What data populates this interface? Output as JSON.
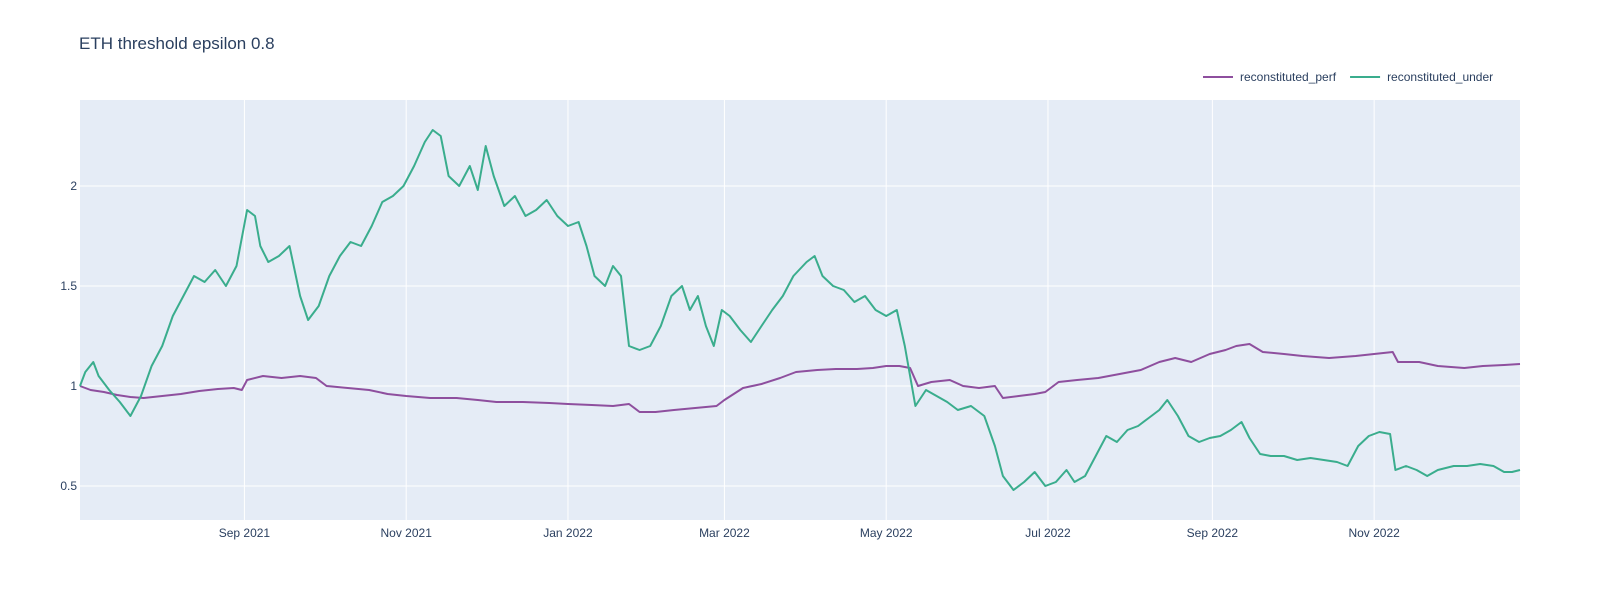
{
  "chart_data": {
    "type": "line",
    "title": "ETH threshold epsilon 0.8",
    "xlabel": "",
    "ylabel": "",
    "x_range": [
      "2021-07-01",
      "2022-12-26"
    ],
    "ylim": [
      0.33,
      2.43
    ],
    "x_ticks": [
      {
        "date": "2021-09-01",
        "label": "Sep 2021"
      },
      {
        "date": "2021-11-01",
        "label": "Nov 2021"
      },
      {
        "date": "2022-01-01",
        "label": "Jan 2022"
      },
      {
        "date": "2022-03-01",
        "label": "Mar 2022"
      },
      {
        "date": "2022-05-01",
        "label": "May 2022"
      },
      {
        "date": "2022-07-01",
        "label": "Jul 2022"
      },
      {
        "date": "2022-09-01",
        "label": "Sep 2022"
      },
      {
        "date": "2022-11-01",
        "label": "Nov 2022"
      }
    ],
    "y_ticks": [
      0.5,
      1,
      1.5,
      2
    ],
    "grid": true,
    "legend_position": "top-right",
    "series": [
      {
        "name": "reconstituted_perf",
        "color": "#8e4f9e",
        "points": [
          [
            "2021-07-01",
            1.0
          ],
          [
            "2021-07-05",
            0.98
          ],
          [
            "2021-07-10",
            0.97
          ],
          [
            "2021-07-15",
            0.955
          ],
          [
            "2021-07-20",
            0.945
          ],
          [
            "2021-07-25",
            0.94
          ],
          [
            "2021-08-01",
            0.95
          ],
          [
            "2021-08-08",
            0.96
          ],
          [
            "2021-08-15",
            0.975
          ],
          [
            "2021-08-22",
            0.985
          ],
          [
            "2021-08-28",
            0.99
          ],
          [
            "2021-08-31",
            0.98
          ],
          [
            "2021-09-02",
            1.03
          ],
          [
            "2021-09-08",
            1.05
          ],
          [
            "2021-09-15",
            1.04
          ],
          [
            "2021-09-22",
            1.05
          ],
          [
            "2021-09-28",
            1.04
          ],
          [
            "2021-10-02",
            1.0
          ],
          [
            "2021-10-10",
            0.99
          ],
          [
            "2021-10-18",
            0.98
          ],
          [
            "2021-10-25",
            0.96
          ],
          [
            "2021-11-01",
            0.95
          ],
          [
            "2021-11-10",
            0.94
          ],
          [
            "2021-11-20",
            0.94
          ],
          [
            "2021-11-28",
            0.93
          ],
          [
            "2021-12-05",
            0.92
          ],
          [
            "2021-12-15",
            0.92
          ],
          [
            "2021-12-25",
            0.915
          ],
          [
            "2022-01-01",
            0.91
          ],
          [
            "2022-01-10",
            0.905
          ],
          [
            "2022-01-18",
            0.9
          ],
          [
            "2022-01-24",
            0.91
          ],
          [
            "2022-01-28",
            0.87
          ],
          [
            "2022-02-03",
            0.87
          ],
          [
            "2022-02-10",
            0.88
          ],
          [
            "2022-02-18",
            0.89
          ],
          [
            "2022-02-26",
            0.9
          ],
          [
            "2022-03-01",
            0.93
          ],
          [
            "2022-03-08",
            0.99
          ],
          [
            "2022-03-15",
            1.01
          ],
          [
            "2022-03-22",
            1.04
          ],
          [
            "2022-03-28",
            1.07
          ],
          [
            "2022-04-05",
            1.08
          ],
          [
            "2022-04-12",
            1.085
          ],
          [
            "2022-04-20",
            1.085
          ],
          [
            "2022-04-26",
            1.09
          ],
          [
            "2022-05-01",
            1.1
          ],
          [
            "2022-05-06",
            1.1
          ],
          [
            "2022-05-10",
            1.09
          ],
          [
            "2022-05-13",
            1.0
          ],
          [
            "2022-05-18",
            1.02
          ],
          [
            "2022-05-25",
            1.03
          ],
          [
            "2022-05-30",
            1.0
          ],
          [
            "2022-06-05",
            0.99
          ],
          [
            "2022-06-11",
            1.0
          ],
          [
            "2022-06-14",
            0.94
          ],
          [
            "2022-06-20",
            0.95
          ],
          [
            "2022-06-26",
            0.96
          ],
          [
            "2022-06-30",
            0.97
          ],
          [
            "2022-07-05",
            1.02
          ],
          [
            "2022-07-12",
            1.03
          ],
          [
            "2022-07-20",
            1.04
          ],
          [
            "2022-07-28",
            1.06
          ],
          [
            "2022-08-05",
            1.08
          ],
          [
            "2022-08-12",
            1.12
          ],
          [
            "2022-08-18",
            1.14
          ],
          [
            "2022-08-24",
            1.12
          ],
          [
            "2022-08-31",
            1.16
          ],
          [
            "2022-09-06",
            1.18
          ],
          [
            "2022-09-10",
            1.2
          ],
          [
            "2022-09-15",
            1.21
          ],
          [
            "2022-09-20",
            1.17
          ],
          [
            "2022-09-28",
            1.16
          ],
          [
            "2022-10-05",
            1.15
          ],
          [
            "2022-10-15",
            1.14
          ],
          [
            "2022-10-25",
            1.15
          ],
          [
            "2022-11-01",
            1.16
          ],
          [
            "2022-11-08",
            1.17
          ],
          [
            "2022-11-10",
            1.12
          ],
          [
            "2022-11-18",
            1.12
          ],
          [
            "2022-11-25",
            1.1
          ],
          [
            "2022-12-05",
            1.09
          ],
          [
            "2022-12-12",
            1.1
          ],
          [
            "2022-12-20",
            1.105
          ],
          [
            "2022-12-26",
            1.11
          ]
        ]
      },
      {
        "name": "reconstituted_under",
        "color": "#3aad8d",
        "points": [
          [
            "2021-07-01",
            1.0
          ],
          [
            "2021-07-03",
            1.07
          ],
          [
            "2021-07-06",
            1.12
          ],
          [
            "2021-07-08",
            1.05
          ],
          [
            "2021-07-12",
            0.98
          ],
          [
            "2021-07-16",
            0.92
          ],
          [
            "2021-07-20",
            0.85
          ],
          [
            "2021-07-24",
            0.95
          ],
          [
            "2021-07-28",
            1.1
          ],
          [
            "2021-08-01",
            1.2
          ],
          [
            "2021-08-05",
            1.35
          ],
          [
            "2021-08-09",
            1.45
          ],
          [
            "2021-08-13",
            1.55
          ],
          [
            "2021-08-17",
            1.52
          ],
          [
            "2021-08-21",
            1.58
          ],
          [
            "2021-08-25",
            1.5
          ],
          [
            "2021-08-29",
            1.6
          ],
          [
            "2021-09-02",
            1.88
          ],
          [
            "2021-09-05",
            1.85
          ],
          [
            "2021-09-07",
            1.7
          ],
          [
            "2021-09-10",
            1.62
          ],
          [
            "2021-09-14",
            1.65
          ],
          [
            "2021-09-18",
            1.7
          ],
          [
            "2021-09-22",
            1.45
          ],
          [
            "2021-09-25",
            1.33
          ],
          [
            "2021-09-29",
            1.4
          ],
          [
            "2021-10-03",
            1.55
          ],
          [
            "2021-10-07",
            1.65
          ],
          [
            "2021-10-11",
            1.72
          ],
          [
            "2021-10-15",
            1.7
          ],
          [
            "2021-10-19",
            1.8
          ],
          [
            "2021-10-23",
            1.92
          ],
          [
            "2021-10-27",
            1.95
          ],
          [
            "2021-10-31",
            2.0
          ],
          [
            "2021-11-04",
            2.1
          ],
          [
            "2021-11-08",
            2.22
          ],
          [
            "2021-11-11",
            2.28
          ],
          [
            "2021-11-14",
            2.25
          ],
          [
            "2021-11-17",
            2.05
          ],
          [
            "2021-11-21",
            2.0
          ],
          [
            "2021-11-25",
            2.1
          ],
          [
            "2021-11-28",
            1.98
          ],
          [
            "2021-12-01",
            2.2
          ],
          [
            "2021-12-04",
            2.05
          ],
          [
            "2021-12-08",
            1.9
          ],
          [
            "2021-12-12",
            1.95
          ],
          [
            "2021-12-16",
            1.85
          ],
          [
            "2021-12-20",
            1.88
          ],
          [
            "2021-12-24",
            1.93
          ],
          [
            "2021-12-28",
            1.85
          ],
          [
            "2022-01-01",
            1.8
          ],
          [
            "2022-01-05",
            1.82
          ],
          [
            "2022-01-08",
            1.7
          ],
          [
            "2022-01-11",
            1.55
          ],
          [
            "2022-01-15",
            1.5
          ],
          [
            "2022-01-18",
            1.6
          ],
          [
            "2022-01-21",
            1.55
          ],
          [
            "2022-01-24",
            1.2
          ],
          [
            "2022-01-28",
            1.18
          ],
          [
            "2022-02-01",
            1.2
          ],
          [
            "2022-02-05",
            1.3
          ],
          [
            "2022-02-09",
            1.45
          ],
          [
            "2022-02-13",
            1.5
          ],
          [
            "2022-02-16",
            1.38
          ],
          [
            "2022-02-19",
            1.45
          ],
          [
            "2022-02-22",
            1.3
          ],
          [
            "2022-02-25",
            1.2
          ],
          [
            "2022-02-28",
            1.38
          ],
          [
            "2022-03-03",
            1.35
          ],
          [
            "2022-03-07",
            1.28
          ],
          [
            "2022-03-11",
            1.22
          ],
          [
            "2022-03-15",
            1.3
          ],
          [
            "2022-03-19",
            1.38
          ],
          [
            "2022-03-23",
            1.45
          ],
          [
            "2022-03-27",
            1.55
          ],
          [
            "2022-04-01",
            1.62
          ],
          [
            "2022-04-04",
            1.65
          ],
          [
            "2022-04-07",
            1.55
          ],
          [
            "2022-04-11",
            1.5
          ],
          [
            "2022-04-15",
            1.48
          ],
          [
            "2022-04-19",
            1.42
          ],
          [
            "2022-04-23",
            1.45
          ],
          [
            "2022-04-27",
            1.38
          ],
          [
            "2022-05-01",
            1.35
          ],
          [
            "2022-05-05",
            1.38
          ],
          [
            "2022-05-08",
            1.2
          ],
          [
            "2022-05-10",
            1.05
          ],
          [
            "2022-05-12",
            0.9
          ],
          [
            "2022-05-16",
            0.98
          ],
          [
            "2022-05-20",
            0.95
          ],
          [
            "2022-05-24",
            0.92
          ],
          [
            "2022-05-28",
            0.88
          ],
          [
            "2022-06-02",
            0.9
          ],
          [
            "2022-06-07",
            0.85
          ],
          [
            "2022-06-11",
            0.7
          ],
          [
            "2022-06-14",
            0.55
          ],
          [
            "2022-06-18",
            0.48
          ],
          [
            "2022-06-22",
            0.52
          ],
          [
            "2022-06-26",
            0.57
          ],
          [
            "2022-06-30",
            0.5
          ],
          [
            "2022-07-04",
            0.52
          ],
          [
            "2022-07-08",
            0.58
          ],
          [
            "2022-07-11",
            0.52
          ],
          [
            "2022-07-15",
            0.55
          ],
          [
            "2022-07-19",
            0.65
          ],
          [
            "2022-07-23",
            0.75
          ],
          [
            "2022-07-27",
            0.72
          ],
          [
            "2022-07-31",
            0.78
          ],
          [
            "2022-08-04",
            0.8
          ],
          [
            "2022-08-08",
            0.84
          ],
          [
            "2022-08-12",
            0.88
          ],
          [
            "2022-08-15",
            0.93
          ],
          [
            "2022-08-19",
            0.85
          ],
          [
            "2022-08-23",
            0.75
          ],
          [
            "2022-08-27",
            0.72
          ],
          [
            "2022-08-31",
            0.74
          ],
          [
            "2022-09-04",
            0.75
          ],
          [
            "2022-09-08",
            0.78
          ],
          [
            "2022-09-12",
            0.82
          ],
          [
            "2022-09-15",
            0.74
          ],
          [
            "2022-09-19",
            0.66
          ],
          [
            "2022-09-23",
            0.65
          ],
          [
            "2022-09-28",
            0.65
          ],
          [
            "2022-10-03",
            0.63
          ],
          [
            "2022-10-08",
            0.64
          ],
          [
            "2022-10-13",
            0.63
          ],
          [
            "2022-10-18",
            0.62
          ],
          [
            "2022-10-22",
            0.6
          ],
          [
            "2022-10-26",
            0.7
          ],
          [
            "2022-10-30",
            0.75
          ],
          [
            "2022-11-03",
            0.77
          ],
          [
            "2022-11-07",
            0.76
          ],
          [
            "2022-11-09",
            0.58
          ],
          [
            "2022-11-13",
            0.6
          ],
          [
            "2022-11-17",
            0.58
          ],
          [
            "2022-11-21",
            0.55
          ],
          [
            "2022-11-25",
            0.58
          ],
          [
            "2022-12-01",
            0.6
          ],
          [
            "2022-12-06",
            0.6
          ],
          [
            "2022-12-11",
            0.61
          ],
          [
            "2022-12-16",
            0.6
          ],
          [
            "2022-12-20",
            0.57
          ],
          [
            "2022-12-23",
            0.57
          ],
          [
            "2022-12-26",
            0.58
          ]
        ]
      }
    ]
  }
}
